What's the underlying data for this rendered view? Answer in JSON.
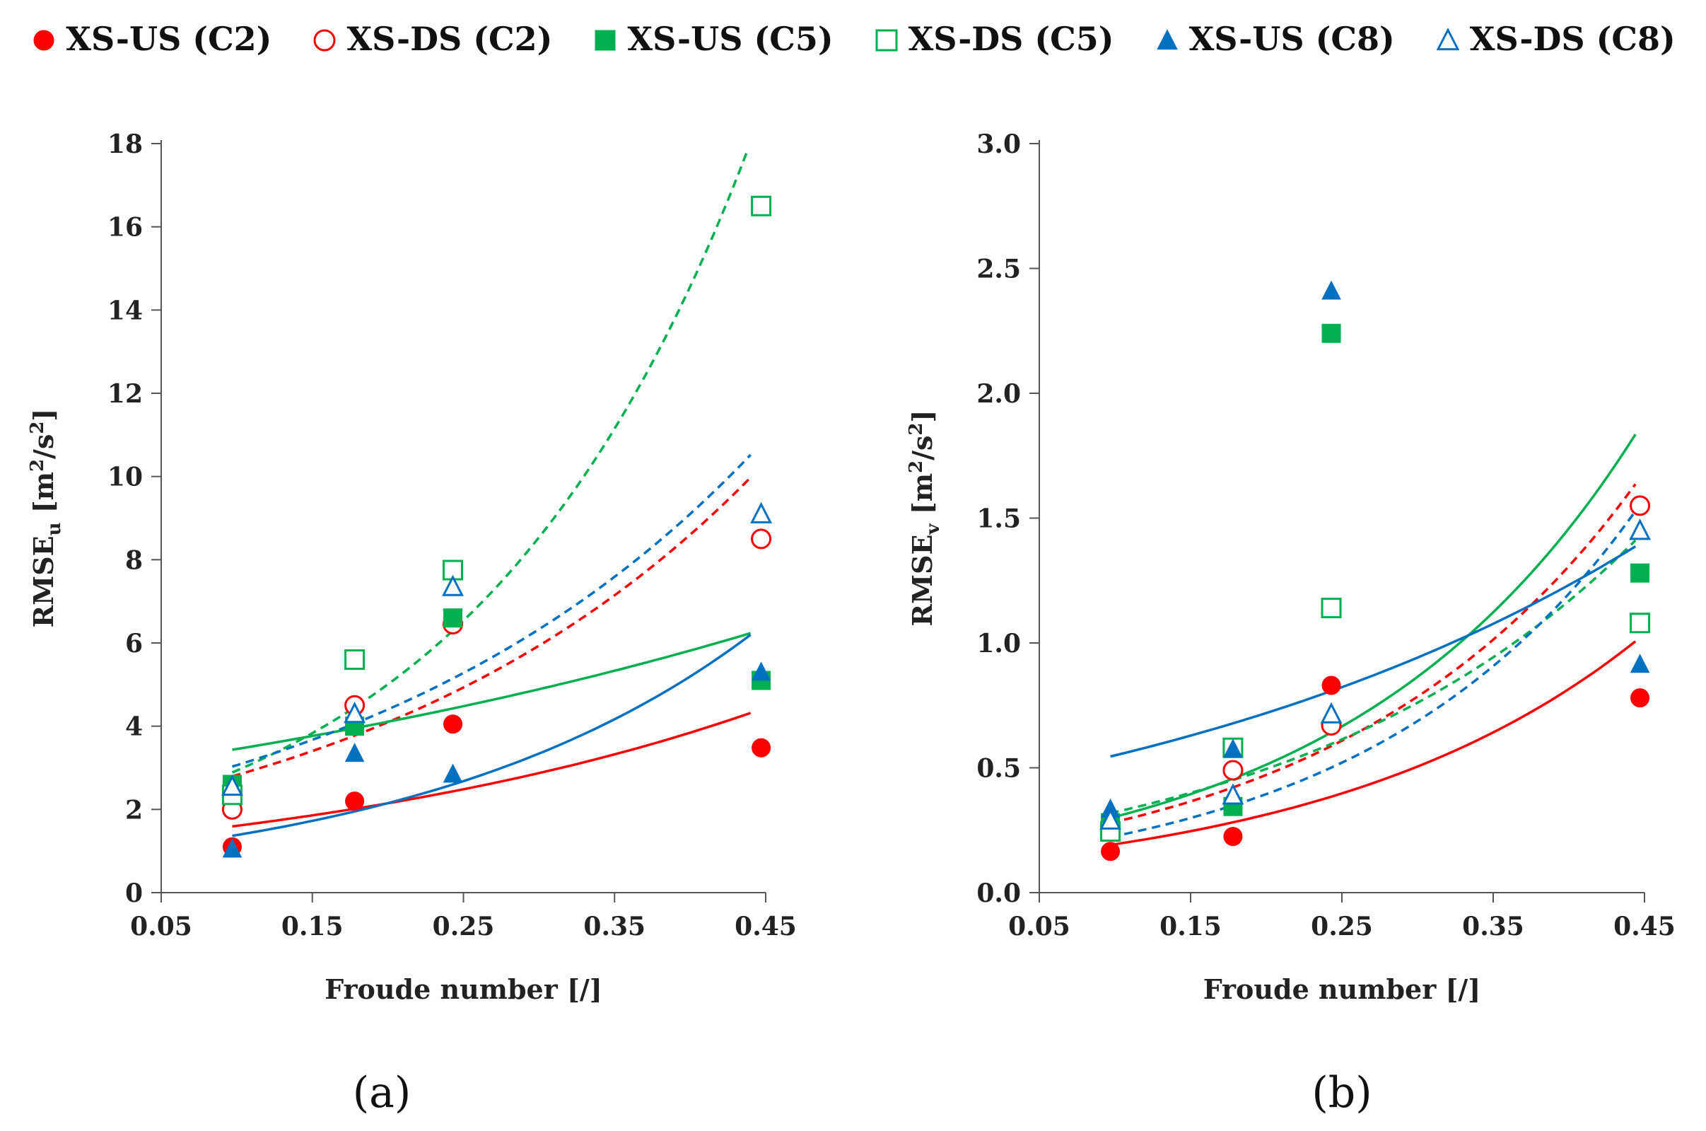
{
  "legend": [
    {
      "name": "XS-US (C2)",
      "color": "#ff0000",
      "marker": "circle",
      "filled": true
    },
    {
      "name": "XS-DS (C2)",
      "color": "#ff0000",
      "marker": "circle",
      "filled": false
    },
    {
      "name": "XS-US (C5)",
      "color": "#00b050",
      "marker": "square",
      "filled": true
    },
    {
      "name": "XS-DS (C5)",
      "color": "#00b050",
      "marker": "square",
      "filled": false
    },
    {
      "name": "XS-US (C8)",
      "color": "#0070c0",
      "marker": "triangle",
      "filled": true
    },
    {
      "name": "XS-DS (C8)",
      "color": "#0070c0",
      "marker": "triangle",
      "filled": false
    }
  ],
  "chart_data": [
    {
      "type": "scatter",
      "panel_label": "(a)",
      "xlabel": "Froude number [/]",
      "ylabel_main": "RMSE",
      "ylabel_sub": "u",
      "ylabel_unit_open": " [m",
      "ylabel_sup1": "2",
      "ylabel_unit_mid": "/s",
      "ylabel_sup2": "2",
      "ylabel_unit_close": "]",
      "xlim": [
        0.05,
        0.45
      ],
      "ylim": [
        0,
        18
      ],
      "xticks": [
        0.05,
        0.15,
        0.25,
        0.35,
        0.45
      ],
      "xtick_labels": [
        "0.05",
        "0.15",
        "0.25",
        "0.35",
        "0.45"
      ],
      "yticks": [
        0,
        2,
        4,
        6,
        8,
        10,
        12,
        14,
        16,
        18
      ],
      "ytick_labels": [
        "0",
        "2",
        "4",
        "6",
        "8",
        "10",
        "12",
        "14",
        "16",
        "18"
      ],
      "x": [
        0.097,
        0.178,
        0.243,
        0.447
      ],
      "series": [
        {
          "name": "XS-US (C2)",
          "values": [
            1.1,
            2.2,
            4.05,
            3.48
          ],
          "trend": {
            "a": 1.2,
            "b": 2.91,
            "dashed": false,
            "x0": 0.097,
            "x1": 0.44
          }
        },
        {
          "name": "XS-DS (C2)",
          "values": [
            2.0,
            4.5,
            6.45,
            8.5
          ],
          "trend": {
            "a": 1.95,
            "b": 3.71,
            "dashed": true,
            "x0": 0.097,
            "x1": 0.44
          }
        },
        {
          "name": "XS-US (C5)",
          "values": [
            2.6,
            4.0,
            6.6,
            5.1
          ],
          "trend": {
            "a": 2.9,
            "b": 1.74,
            "dashed": false,
            "x0": 0.097,
            "x1": 0.44
          }
        },
        {
          "name": "XS-DS (C5)",
          "values": [
            2.35,
            5.6,
            7.75,
            16.5
          ],
          "trend": {
            "a": 1.72,
            "b": 5.34,
            "dashed": true,
            "x0": 0.097,
            "x1": 0.438
          }
        },
        {
          "name": "XS-US (C8)",
          "values": [
            1.05,
            3.35,
            2.85,
            5.3
          ],
          "trend": {
            "a": 0.89,
            "b": 4.41,
            "dashed": false,
            "x0": 0.097,
            "x1": 0.44
          }
        },
        {
          "name": "XS-DS (C8)",
          "values": [
            2.55,
            4.3,
            7.35,
            9.1
          ],
          "trend": {
            "a": 2.13,
            "b": 3.63,
            "dashed": true,
            "x0": 0.097,
            "x1": 0.44
          }
        }
      ]
    },
    {
      "type": "scatter",
      "panel_label": "(b)",
      "xlabel": "Froude number [/]",
      "ylabel_main": "RMSE",
      "ylabel_sub": "v",
      "ylabel_unit_open": " [m",
      "ylabel_sup1": "2",
      "ylabel_unit_mid": "/s",
      "ylabel_sup2": "2",
      "ylabel_unit_close": "]",
      "xlim": [
        0.05,
        0.45
      ],
      "ylim": [
        0,
        3
      ],
      "xticks": [
        0.05,
        0.15,
        0.25,
        0.35,
        0.45
      ],
      "xtick_labels": [
        "0.05",
        "0.15",
        "0.25",
        "0.35",
        "0.45"
      ],
      "yticks": [
        0,
        0.5,
        1.0,
        1.5,
        2.0,
        2.5,
        3.0
      ],
      "ytick_labels": [
        "0.0",
        "0.5",
        "1.0",
        "1.5",
        "2.0",
        "2.5",
        "3.0"
      ],
      "x": [
        0.097,
        0.178,
        0.243,
        0.447
      ],
      "series": [
        {
          "name": "XS-US (C2)",
          "values": [
            0.165,
            0.225,
            0.83,
            0.78
          ],
          "trend": {
            "a": 0.12,
            "b": 4.79,
            "dashed": false,
            "x0": 0.097,
            "x1": 0.444
          }
        },
        {
          "name": "XS-DS (C2)",
          "values": [
            0.27,
            0.49,
            0.67,
            1.55
          ],
          "trend": {
            "a": 0.17,
            "b": 5.1,
            "dashed": true,
            "x0": 0.097,
            "x1": 0.444
          }
        },
        {
          "name": "XS-US (C5)",
          "values": [
            0.28,
            0.345,
            2.24,
            1.28
          ],
          "trend": {
            "a": 0.18,
            "b": 5.23,
            "dashed": false,
            "x0": 0.097,
            "x1": 0.444
          }
        },
        {
          "name": "XS-DS (C5)",
          "values": [
            0.245,
            0.58,
            1.14,
            1.08
          ],
          "trend": {
            "a": 0.21,
            "b": 4.29,
            "dashed": true,
            "x0": 0.097,
            "x1": 0.444
          }
        },
        {
          "name": "XS-US (C8)",
          "values": [
            0.335,
            0.575,
            2.41,
            0.915
          ],
          "trend": {
            "a": 0.42,
            "b": 2.69,
            "dashed": false,
            "x0": 0.097,
            "x1": 0.444
          }
        },
        {
          "name": "XS-DS (C8)",
          "values": [
            0.29,
            0.39,
            0.715,
            1.45
          ],
          "trend": {
            "a": 0.13,
            "b": 5.55,
            "dashed": true,
            "x0": 0.097,
            "x1": 0.444
          }
        }
      ]
    }
  ]
}
